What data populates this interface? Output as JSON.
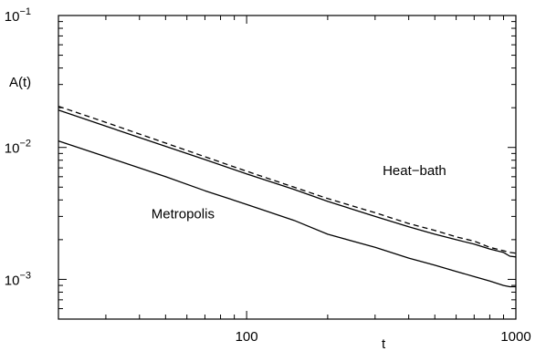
{
  "chart_data": {
    "type": "line",
    "xlabel": "t",
    "ylabel": "A(t)",
    "xscale": "log",
    "yscale": "log",
    "xlim": [
      20,
      1000
    ],
    "ylim": [
      0.0005,
      0.1
    ],
    "grid": false,
    "x_ticks": [
      {
        "value": 100,
        "label": "100"
      },
      {
        "value": 1000,
        "label": "1000"
      }
    ],
    "y_ticks": [
      {
        "value": 0.1,
        "base": "10",
        "exp": "−1"
      },
      {
        "value": 0.01,
        "base": "10",
        "exp": "−2"
      },
      {
        "value": 0.001,
        "base": "10",
        "exp": "−3"
      }
    ],
    "annotations": [
      {
        "text": "Heat−bath",
        "x": 420,
        "y": 0.0062
      },
      {
        "text": "Metropolis",
        "x": 58,
        "y": 0.0029
      }
    ],
    "series": [
      {
        "line_style": "dashed",
        "x": [
          20,
          30,
          50,
          70,
          100,
          150,
          200,
          300,
          400,
          500,
          600,
          700,
          800,
          900,
          950,
          1000
        ],
        "y": [
          0.0205,
          0.0155,
          0.0108,
          0.0085,
          0.0066,
          0.005,
          0.0041,
          0.0032,
          0.00265,
          0.00235,
          0.0021,
          0.00195,
          0.00175,
          0.00165,
          0.0016,
          0.00158
        ]
      },
      {
        "line_style": "solid",
        "x": [
          20,
          30,
          50,
          70,
          100,
          150,
          200,
          300,
          400,
          500,
          600,
          700,
          800,
          900,
          950,
          1000
        ],
        "y": [
          0.0192,
          0.0145,
          0.0102,
          0.0081,
          0.0063,
          0.0048,
          0.0039,
          0.003,
          0.0025,
          0.0022,
          0.002,
          0.00185,
          0.0017,
          0.0016,
          0.0015,
          0.00148
        ]
      },
      {
        "line_style": "solid",
        "x": [
          20,
          30,
          50,
          70,
          100,
          150,
          200,
          300,
          400,
          500,
          600,
          700,
          800,
          900,
          950,
          1000
        ],
        "y": [
          0.0112,
          0.0085,
          0.006,
          0.0047,
          0.0037,
          0.0028,
          0.0022,
          0.00175,
          0.00145,
          0.00128,
          0.00115,
          0.00105,
          0.00097,
          0.0009,
          0.00088,
          0.00088
        ]
      }
    ]
  }
}
